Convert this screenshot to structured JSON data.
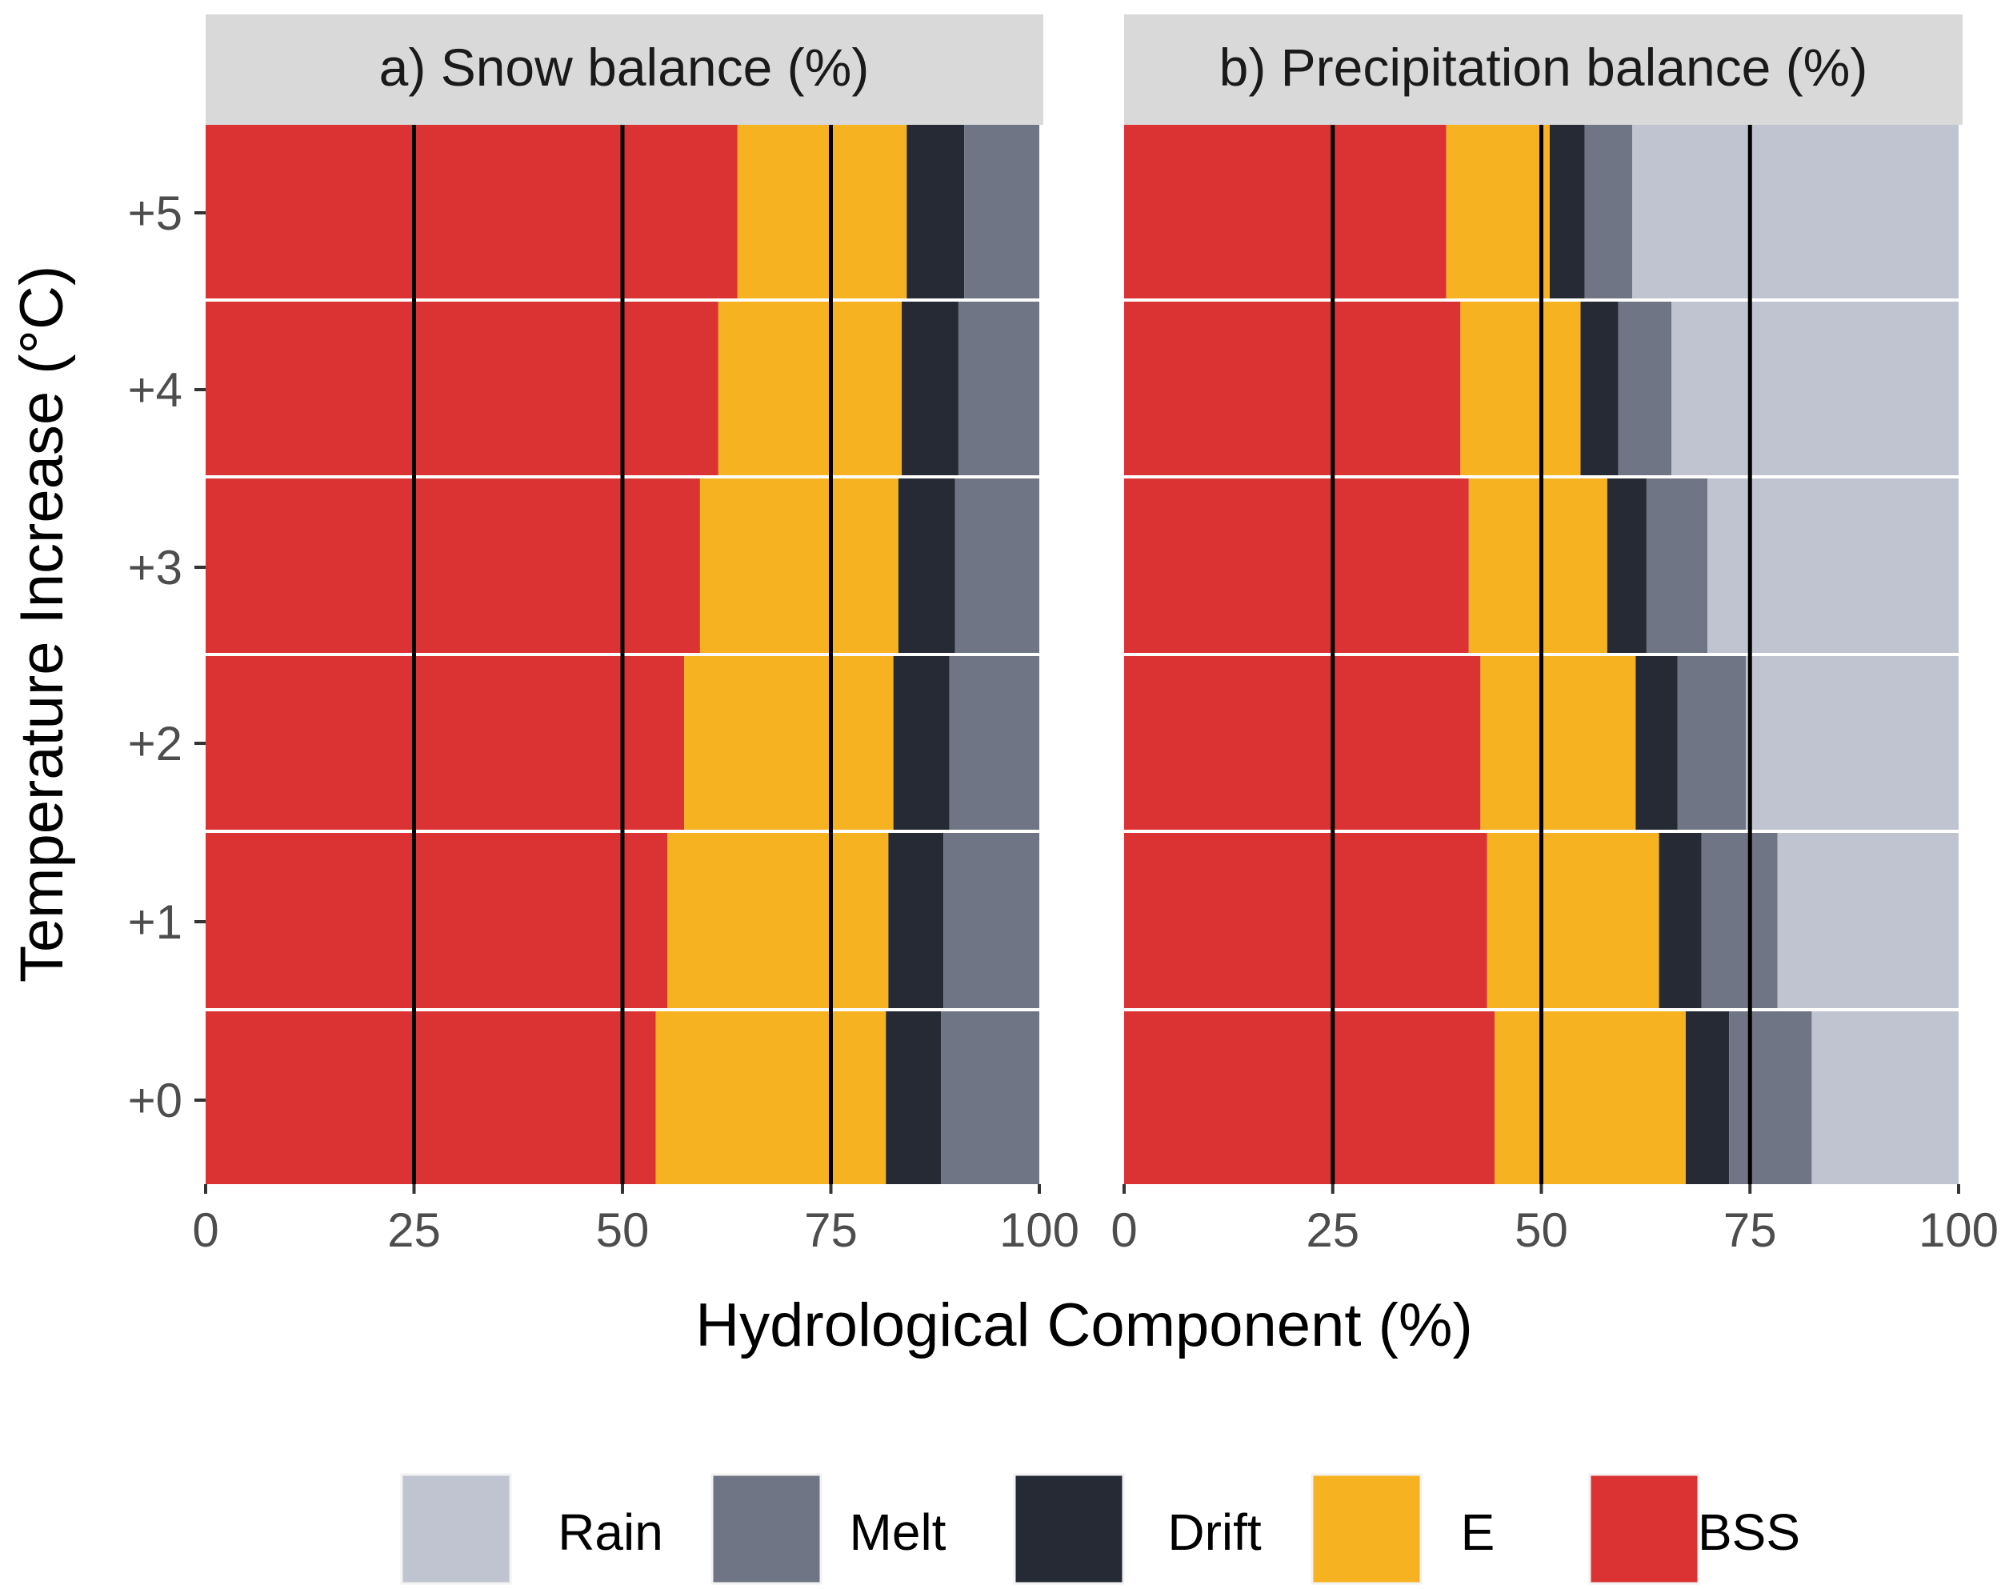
{
  "colors": {
    "Rain": "#bfc4d0",
    "Melt": "#6f7584",
    "Drift": "#262a34",
    "E": "#f6b221",
    "BSS": "#db3333",
    "strip": "#d9d9d9",
    "grid": "#ffffff",
    "tick_text": "#4d4d4d",
    "refline": "#000000"
  },
  "chart_data": [
    {
      "type": "bar",
      "orientation": "horizontal",
      "stacked": true,
      "title": "a) Snow balance (%)",
      "xlabel": "Hydrological Component (%)",
      "ylabel": "Temperature Increase (°C)",
      "xlim": [
        0,
        100
      ],
      "xticks": [
        "0",
        "25",
        "50",
        "75",
        "100"
      ],
      "reference_lines": [
        25,
        50,
        75
      ],
      "categories": [
        "+0",
        "+1",
        "+2",
        "+3",
        "+4",
        "+5"
      ],
      "series": [
        {
          "name": "BSS",
          "values": [
            54.0,
            55.4,
            57.4,
            59.3,
            61.5,
            63.8
          ]
        },
        {
          "name": "E",
          "values": [
            27.6,
            26.5,
            25.1,
            23.8,
            22.0,
            20.3
          ]
        },
        {
          "name": "Drift",
          "values": [
            6.6,
            6.6,
            6.7,
            6.8,
            6.8,
            6.9
          ]
        },
        {
          "name": "Melt",
          "values": [
            11.8,
            11.5,
            10.8,
            10.1,
            9.7,
            9.0
          ]
        }
      ]
    },
    {
      "type": "bar",
      "orientation": "horizontal",
      "stacked": true,
      "title": "b) Precipitation balance (%)",
      "xlabel": "Hydrological Component (%)",
      "ylabel": "Temperature Increase (°C)",
      "xlim": [
        0,
        100
      ],
      "xticks": [
        "0",
        "25",
        "50",
        "75",
        "100"
      ],
      "reference_lines": [
        25,
        50,
        75
      ],
      "categories": [
        "+0",
        "+1",
        "+2",
        "+3",
        "+4",
        "+5"
      ],
      "series": [
        {
          "name": "BSS",
          "values": [
            44.4,
            43.5,
            42.7,
            41.3,
            40.3,
            38.6
          ]
        },
        {
          "name": "E",
          "values": [
            22.9,
            20.6,
            18.6,
            16.6,
            14.4,
            12.4
          ]
        },
        {
          "name": "Drift",
          "values": [
            5.2,
            5.1,
            5.0,
            4.7,
            4.5,
            4.2
          ]
        },
        {
          "name": "Melt",
          "values": [
            9.9,
            9.1,
            8.2,
            7.3,
            6.4,
            5.7
          ]
        },
        {
          "name": "Rain",
          "values": [
            17.6,
            21.7,
            25.5,
            30.1,
            34.4,
            39.1
          ]
        }
      ]
    }
  ],
  "legend": {
    "position": "bottom",
    "items": [
      "Rain",
      "Melt",
      "Drift",
      "E",
      "BSS"
    ]
  }
}
